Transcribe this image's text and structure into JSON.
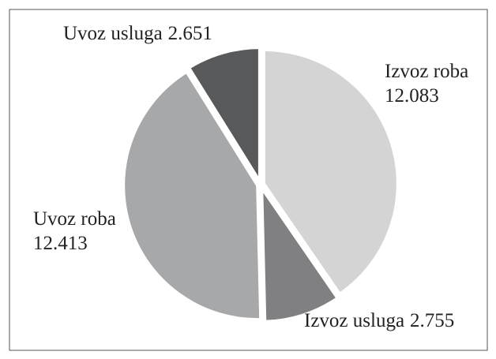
{
  "chart_data": {
    "type": "pie",
    "categories": [
      "Izvoz roba",
      "Izvoz usluga",
      "Uvoz roba",
      "Uvoz usluga"
    ],
    "values": [
      12.083,
      2.755,
      12.413,
      2.651
    ],
    "colors": [
      "#d4d4d5",
      "#808082",
      "#a7a8aa",
      "#58595b"
    ]
  }
}
